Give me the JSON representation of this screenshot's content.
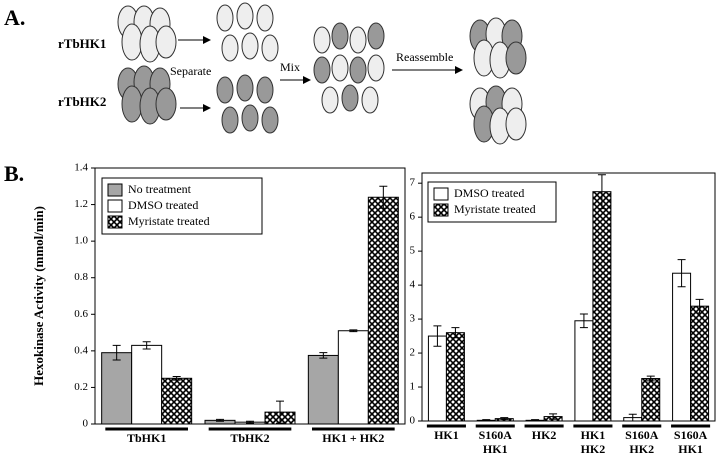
{
  "panel_labels": [
    "A.",
    "B."
  ],
  "diagram": {
    "proteins": [
      "rTbHK1",
      "rTbHK2"
    ],
    "steps": [
      "Separate",
      "Mix",
      "Reassemble"
    ]
  },
  "chart_data": [
    {
      "type": "bar",
      "y_label": "Hexokinase Activity (mmol/min)",
      "categories": [
        [
          "TbHK1"
        ],
        [
          "TbHK2"
        ],
        [
          "HK1 + HK2"
        ]
      ],
      "series": [
        {
          "name": "No treatment",
          "color": "#a6a6a6",
          "values": [
            0.39,
            0.02,
            0.375
          ],
          "errors": [
            0.04,
            0.005,
            0.015
          ]
        },
        {
          "name": "DMSO treated",
          "color": "#ffffff",
          "values": [
            0.43,
            0.01,
            0.51
          ],
          "errors": [
            0.02,
            0.005,
            0.005
          ]
        },
        {
          "name": "Myristate treated",
          "color": "crosshatch",
          "values": [
            0.25,
            0.065,
            1.24
          ],
          "errors": [
            0.01,
            0.06,
            0.06
          ]
        }
      ],
      "ylim": [
        0,
        1.4
      ],
      "yticks": [
        0,
        0.2,
        0.4,
        0.6,
        0.8,
        {
          "value": 1,
          "label": "1.0"
        },
        1.2,
        1.4
      ],
      "legend": "upper left"
    },
    {
      "type": "bar",
      "categories": [
        [
          "HK1"
        ],
        [
          "S160A",
          "HK1"
        ],
        [
          "HK2"
        ],
        [
          "HK1",
          "HK2"
        ],
        [
          "S160A",
          "HK2"
        ],
        [
          "S160A",
          "HK1"
        ]
      ],
      "series": [
        {
          "name": "DMSO treated",
          "color": "#ffffff",
          "values": [
            2.5,
            0.02,
            0.02,
            2.95,
            0.1,
            4.35
          ],
          "errors": [
            0.3,
            0.02,
            0.02,
            0.2,
            0.1,
            0.4
          ]
        },
        {
          "name": "Myristate treated",
          "color": "crosshatch",
          "values": [
            2.6,
            0.07,
            0.13,
            6.75,
            1.25,
            3.38
          ],
          "errors": [
            0.15,
            0.03,
            0.08,
            0.5,
            0.07,
            0.2
          ]
        }
      ],
      "ylim": [
        0,
        7.3
      ],
      "yticks": [
        0,
        1,
        2,
        3,
        4,
        5,
        6,
        7
      ],
      "legend": "upper left"
    }
  ]
}
